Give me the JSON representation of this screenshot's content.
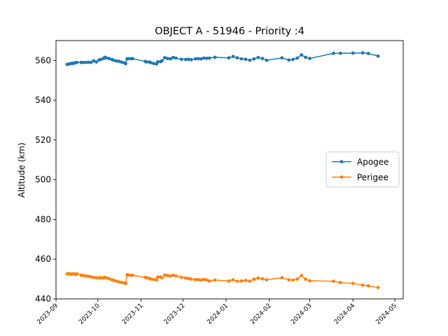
{
  "chart_data": {
    "type": "line",
    "title": "OBJECT A - 51946 - Priority :4",
    "xlabel": "",
    "ylabel": "Altitude (km)",
    "xlim": [
      "2023-09-01",
      "2024-05-07"
    ],
    "ylim": [
      440,
      570
    ],
    "x_ticks": [
      "2023-09",
      "2023-10",
      "2023-11",
      "2023-12",
      "2024-01",
      "2024-02",
      "2024-03",
      "2024-04",
      "2024-05"
    ],
    "y_ticks": [
      440,
      460,
      480,
      500,
      520,
      540,
      560
    ],
    "grid": false,
    "legend": "center-right",
    "series": [
      {
        "name": "Apogee",
        "color": "#1f77b4",
        "points": [
          [
            "2023-09-09",
            558.0
          ],
          [
            "2023-09-10",
            558.2
          ],
          [
            "2023-09-11",
            558.3
          ],
          [
            "2023-09-12",
            558.5
          ],
          [
            "2023-09-13",
            558.5
          ],
          [
            "2023-09-14",
            558.7
          ],
          [
            "2023-09-15",
            558.9
          ],
          [
            "2023-09-16",
            559.0
          ],
          [
            "2023-09-19",
            559.0
          ],
          [
            "2023-09-20",
            559.0
          ],
          [
            "2023-09-22",
            559.0
          ],
          [
            "2023-09-24",
            559.1
          ],
          [
            "2023-09-26",
            559.0
          ],
          [
            "2023-09-28",
            559.8
          ],
          [
            "2023-09-30",
            559.3
          ],
          [
            "2023-10-02",
            560.3
          ],
          [
            "2023-10-03",
            560.5
          ],
          [
            "2023-10-05",
            561.0
          ],
          [
            "2023-10-06",
            561.6
          ],
          [
            "2023-10-07",
            561.3
          ],
          [
            "2023-10-09",
            561.0
          ],
          [
            "2023-10-11",
            560.5
          ],
          [
            "2023-10-12",
            560.2
          ],
          [
            "2023-10-14",
            559.8
          ],
          [
            "2023-10-16",
            559.6
          ],
          [
            "2023-10-18",
            559.2
          ],
          [
            "2023-10-20",
            558.8
          ],
          [
            "2023-10-21",
            558.4
          ],
          [
            "2023-10-22",
            560.8
          ],
          [
            "2023-10-23",
            560.9
          ],
          [
            "2023-10-25",
            560.9
          ],
          [
            "2023-10-26",
            560.9
          ],
          [
            "2023-11-04",
            559.5
          ],
          [
            "2023-11-05",
            559.3
          ],
          [
            "2023-11-07",
            559.2
          ],
          [
            "2023-11-08",
            558.9
          ],
          [
            "2023-11-10",
            558.5
          ],
          [
            "2023-11-12",
            558.2
          ],
          [
            "2023-11-13",
            559.3
          ],
          [
            "2023-11-15",
            559.4
          ],
          [
            "2023-11-16",
            559.8
          ],
          [
            "2023-11-18",
            561.4
          ],
          [
            "2023-11-20",
            561.0
          ],
          [
            "2023-11-22",
            560.8
          ],
          [
            "2023-11-24",
            561.5
          ],
          [
            "2023-11-26",
            561.2
          ],
          [
            "2023-11-30",
            560.6
          ],
          [
            "2023-12-03",
            560.5
          ],
          [
            "2023-12-05",
            560.6
          ],
          [
            "2023-12-07",
            560.4
          ],
          [
            "2023-12-10",
            560.8
          ],
          [
            "2023-12-12",
            560.9
          ],
          [
            "2023-12-14",
            560.8
          ],
          [
            "2023-12-16",
            561.2
          ],
          [
            "2023-12-18",
            561.1
          ],
          [
            "2023-12-20",
            561.2
          ],
          [
            "2023-12-24",
            561.6
          ],
          [
            "2024-01-03",
            561.3
          ],
          [
            "2024-01-06",
            562.0
          ],
          [
            "2024-01-09",
            561.3
          ],
          [
            "2024-01-12",
            560.8
          ],
          [
            "2024-01-15",
            560.6
          ],
          [
            "2024-01-18",
            560.1
          ],
          [
            "2024-01-21",
            560.8
          ],
          [
            "2024-01-24",
            561.5
          ],
          [
            "2024-01-27",
            561.0
          ],
          [
            "2024-01-30",
            560.1
          ],
          [
            "2024-02-10",
            561.3
          ],
          [
            "2024-02-15",
            560.2
          ],
          [
            "2024-02-18",
            560.5
          ],
          [
            "2024-02-21",
            561.2
          ],
          [
            "2024-02-24",
            562.8
          ],
          [
            "2024-02-27",
            561.6
          ],
          [
            "2024-03-01",
            561.0
          ],
          [
            "2024-03-18",
            563.6
          ],
          [
            "2024-03-23",
            563.6
          ],
          [
            "2024-04-01",
            563.7
          ],
          [
            "2024-04-08",
            563.8
          ],
          [
            "2024-04-12",
            563.5
          ],
          [
            "2024-04-19",
            562.2
          ]
        ]
      },
      {
        "name": "Perigee",
        "color": "#ff7f0e",
        "points": [
          [
            "2023-09-09",
            452.6
          ],
          [
            "2023-09-10",
            452.7
          ],
          [
            "2023-09-11",
            452.6
          ],
          [
            "2023-09-12",
            452.4
          ],
          [
            "2023-09-13",
            452.6
          ],
          [
            "2023-09-14",
            452.5
          ],
          [
            "2023-09-15",
            452.3
          ],
          [
            "2023-09-16",
            452.6
          ],
          [
            "2023-09-19",
            451.9
          ],
          [
            "2023-09-20",
            451.8
          ],
          [
            "2023-09-22",
            451.6
          ],
          [
            "2023-09-24",
            451.4
          ],
          [
            "2023-09-26",
            451.1
          ],
          [
            "2023-09-28",
            450.8
          ],
          [
            "2023-09-30",
            450.6
          ],
          [
            "2023-10-02",
            450.7
          ],
          [
            "2023-10-03",
            450.5
          ],
          [
            "2023-10-05",
            450.6
          ],
          [
            "2023-10-06",
            450.8
          ],
          [
            "2023-10-07",
            450.7
          ],
          [
            "2023-10-09",
            450.2
          ],
          [
            "2023-10-11",
            449.6
          ],
          [
            "2023-10-12",
            449.4
          ],
          [
            "2023-10-14",
            449.0
          ],
          [
            "2023-10-16",
            448.6
          ],
          [
            "2023-10-18",
            448.3
          ],
          [
            "2023-10-20",
            448.0
          ],
          [
            "2023-10-21",
            447.8
          ],
          [
            "2023-10-22",
            452.2
          ],
          [
            "2023-10-23",
            452.0
          ],
          [
            "2023-10-25",
            451.9
          ],
          [
            "2023-10-26",
            451.9
          ],
          [
            "2023-11-04",
            450.8
          ],
          [
            "2023-11-05",
            450.7
          ],
          [
            "2023-11-07",
            450.3
          ],
          [
            "2023-11-08",
            450.0
          ],
          [
            "2023-11-10",
            449.8
          ],
          [
            "2023-11-12",
            449.6
          ],
          [
            "2023-11-13",
            451.0
          ],
          [
            "2023-11-15",
            451.0
          ],
          [
            "2023-11-16",
            450.7
          ],
          [
            "2023-11-18",
            452.0
          ],
          [
            "2023-11-20",
            451.8
          ],
          [
            "2023-11-22",
            451.5
          ],
          [
            "2023-11-24",
            451.9
          ],
          [
            "2023-11-26",
            451.6
          ],
          [
            "2023-11-30",
            450.8
          ],
          [
            "2023-12-03",
            450.5
          ],
          [
            "2023-12-05",
            450.3
          ],
          [
            "2023-12-07",
            450.0
          ],
          [
            "2023-12-10",
            449.7
          ],
          [
            "2023-12-12",
            449.7
          ],
          [
            "2023-12-14",
            449.5
          ],
          [
            "2023-12-16",
            449.8
          ],
          [
            "2023-12-18",
            449.5
          ],
          [
            "2023-12-20",
            449.0
          ],
          [
            "2023-12-24",
            449.5
          ],
          [
            "2024-01-03",
            449.0
          ],
          [
            "2024-01-06",
            449.6
          ],
          [
            "2024-01-09",
            448.9
          ],
          [
            "2024-01-12",
            449.0
          ],
          [
            "2024-01-15",
            449.3
          ],
          [
            "2024-01-18",
            448.9
          ],
          [
            "2024-01-21",
            449.9
          ],
          [
            "2024-01-24",
            450.5
          ],
          [
            "2024-01-27",
            450.1
          ],
          [
            "2024-01-30",
            449.6
          ],
          [
            "2024-02-10",
            450.7
          ],
          [
            "2024-02-15",
            449.6
          ],
          [
            "2024-02-18",
            449.5
          ],
          [
            "2024-02-21",
            450.0
          ],
          [
            "2024-02-24",
            451.8
          ],
          [
            "2024-02-27",
            449.9
          ],
          [
            "2024-03-01",
            449.1
          ],
          [
            "2024-03-18",
            448.9
          ],
          [
            "2024-03-23",
            448.2
          ],
          [
            "2024-04-01",
            447.8
          ],
          [
            "2024-04-08",
            446.9
          ],
          [
            "2024-04-12",
            446.6
          ],
          [
            "2024-04-19",
            445.7
          ]
        ]
      }
    ]
  }
}
